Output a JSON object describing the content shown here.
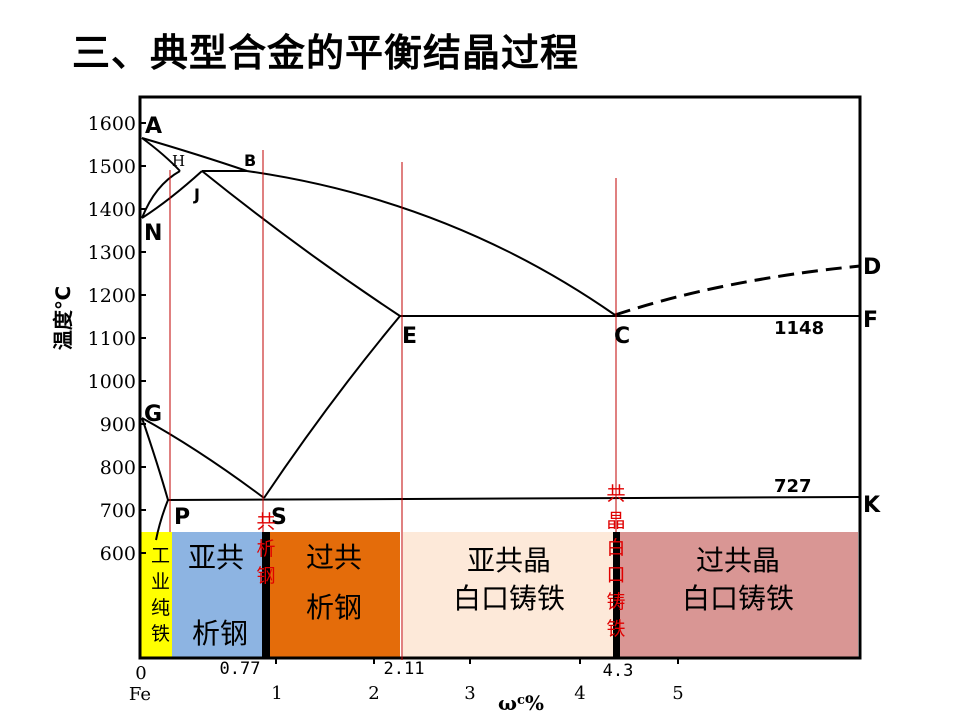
{
  "title": "三、典型合金的平衡结晶过程",
  "y_axis": {
    "label": "温度℃",
    "ticks": [
      "1600",
      "1500",
      "1400",
      "1300",
      "1200",
      "1100",
      "1000",
      "900",
      "800",
      "700",
      "600"
    ]
  },
  "x_axis": {
    "label": "ω",
    "label_sub": "c",
    "label_suffix": "%",
    "ticks": [
      "0",
      "1",
      "2",
      "3",
      "4",
      "5"
    ],
    "origin_label": "Fe",
    "special_ticks": [
      "0.77",
      "2.11",
      "4.3"
    ]
  },
  "points": {
    "A": "A",
    "H": "H",
    "B": "B",
    "J": "J",
    "N": "N",
    "D": "D",
    "E": "E",
    "C": "C",
    "F": "F",
    "G": "G",
    "P": "P",
    "S": "S",
    "K": "K"
  },
  "isotherms": {
    "eutectic": "1148",
    "eutectoid": "727"
  },
  "regions": {
    "pure_iron": [
      "工",
      "业",
      "纯",
      "铁"
    ],
    "hypo_steel": [
      "亚共",
      "析钢"
    ],
    "eutectoid_steel": [
      "共",
      "析",
      "钢"
    ],
    "hyper_steel": [
      "过共",
      "析钢"
    ],
    "hypo_cast_iron": [
      "亚共晶",
      "白口铸铁"
    ],
    "eutectic_cast_iron": [
      "共",
      "晶",
      "白",
      "口",
      "铸",
      "铁"
    ],
    "hyper_cast_iron": [
      "过共晶",
      "白口铸铁"
    ]
  },
  "colors": {
    "pure_iron": "#ffff00",
    "hypo_steel": "#8db4e2",
    "hyper_steel": "#e46c0a",
    "hypo_cast_iron": "#fde9d9",
    "hyper_cast_iron": "#d99694",
    "marker_lines": "#c00000",
    "red_text": "#e00000"
  }
}
